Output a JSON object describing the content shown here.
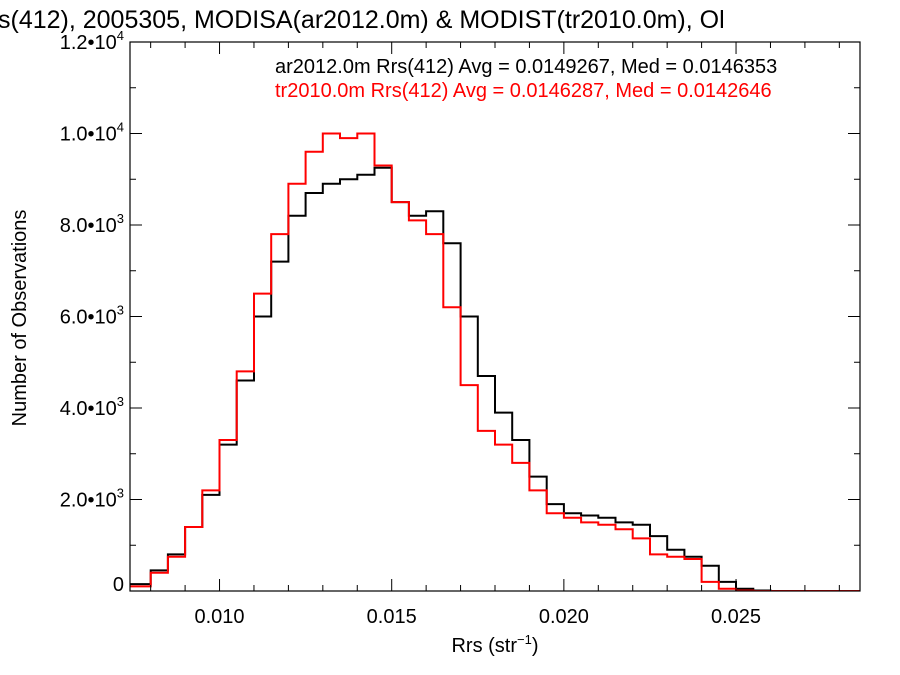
{
  "chart_data": {
    "type": "line",
    "title": "s(412), 2005305, MODISA(ar2012.0m) & MODIST(tr2010.0m), Ol",
    "xlabel_main": "Rrs (str",
    "xlabel_exp": "−1",
    "xlabel_close": ")",
    "ylabel": "Number of Observations",
    "xlim": [
      0.0074,
      0.0286
    ],
    "ylim": [
      0,
      12000
    ],
    "x_ticks": [
      {
        "value": 0.01,
        "label": "0.010"
      },
      {
        "value": 0.015,
        "label": "0.015"
      },
      {
        "value": 0.02,
        "label": "0.020"
      },
      {
        "value": 0.025,
        "label": "0.025"
      }
    ],
    "y_ticks": [
      {
        "value": 0,
        "mant": "0",
        "exp": ""
      },
      {
        "value": 2000,
        "mant": "2.0•10",
        "exp": "3"
      },
      {
        "value": 4000,
        "mant": "4.0•10",
        "exp": "3"
      },
      {
        "value": 6000,
        "mant": "6.0•10",
        "exp": "3"
      },
      {
        "value": 8000,
        "mant": "8.0•10",
        "exp": "3"
      },
      {
        "value": 10000,
        "mant": "1.0•10",
        "exp": "4"
      },
      {
        "value": 12000,
        "mant": "1.2•10",
        "exp": "4"
      }
    ],
    "legend_placement": "top-right",
    "series": [
      {
        "name": "ar2012.0m Rrs(412) Avg = 0.0149267, Med = 0.0146353",
        "color": "#000000",
        "x": [
          0.0074,
          0.008,
          0.0085,
          0.009,
          0.0095,
          0.01,
          0.0105,
          0.011,
          0.0115,
          0.012,
          0.0125,
          0.013,
          0.0135,
          0.014,
          0.0145,
          0.015,
          0.0155,
          0.016,
          0.0165,
          0.017,
          0.0175,
          0.018,
          0.0185,
          0.019,
          0.0195,
          0.02,
          0.0205,
          0.021,
          0.0215,
          0.022,
          0.0225,
          0.023,
          0.0235,
          0.024,
          0.0245,
          0.025,
          0.0255,
          0.026,
          0.0286
        ],
        "y": [
          150,
          450,
          800,
          1400,
          2100,
          3200,
          4600,
          6000,
          7200,
          8200,
          8700,
          8900,
          9000,
          9100,
          9250,
          8500,
          8200,
          8300,
          7600,
          6000,
          4700,
          3900,
          3300,
          2500,
          1900,
          1700,
          1650,
          1600,
          1500,
          1450,
          1200,
          900,
          750,
          550,
          200,
          50,
          10,
          0,
          0
        ]
      },
      {
        "name": "tr2010.0m Rrs(412) Avg = 0.0146287, Med = 0.0142646",
        "color": "#ff0000",
        "x": [
          0.0074,
          0.008,
          0.0085,
          0.009,
          0.0095,
          0.01,
          0.0105,
          0.011,
          0.0115,
          0.012,
          0.0125,
          0.013,
          0.0135,
          0.014,
          0.0145,
          0.015,
          0.0155,
          0.016,
          0.0165,
          0.017,
          0.0175,
          0.018,
          0.0185,
          0.019,
          0.0195,
          0.02,
          0.0205,
          0.021,
          0.0215,
          0.022,
          0.0225,
          0.023,
          0.0235,
          0.024,
          0.0245,
          0.025,
          0.0255,
          0.026,
          0.0286
        ],
        "y": [
          100,
          400,
          750,
          1400,
          2200,
          3300,
          4800,
          6500,
          7800,
          8900,
          9600,
          10000,
          9900,
          10000,
          9300,
          8500,
          8100,
          7800,
          6200,
          4500,
          3500,
          3200,
          2800,
          2200,
          1700,
          1600,
          1500,
          1450,
          1350,
          1150,
          800,
          750,
          700,
          200,
          50,
          10,
          0,
          0,
          0
        ]
      }
    ]
  }
}
